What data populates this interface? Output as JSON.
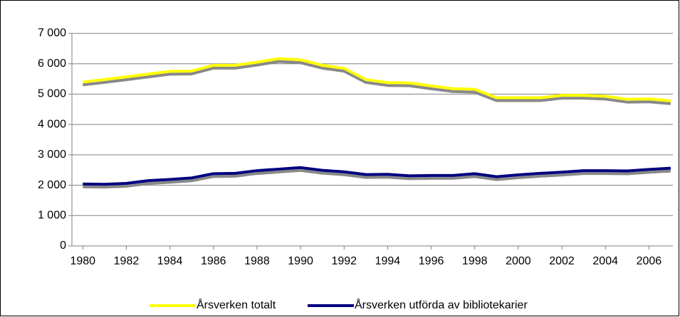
{
  "chart_data": {
    "type": "line",
    "x": [
      1980,
      1981,
      1982,
      1983,
      1984,
      1985,
      1986,
      1987,
      1988,
      1989,
      1990,
      1991,
      1992,
      1993,
      1994,
      1995,
      1996,
      1997,
      1998,
      1999,
      2000,
      2001,
      2002,
      2003,
      2004,
      2005,
      2006,
      2007
    ],
    "series": [
      {
        "name": "Årsverken totalt",
        "color": "#ffff00",
        "values": [
          5400,
          5480,
          5570,
          5660,
          5750,
          5760,
          5950,
          5950,
          6050,
          6170,
          6130,
          5950,
          5850,
          5480,
          5380,
          5370,
          5270,
          5180,
          5160,
          4880,
          4880,
          4880,
          4960,
          4960,
          4930,
          4830,
          4840,
          4780
        ]
      },
      {
        "name": "Årsverken utförda av bibliotekarier",
        "color": "#000080",
        "values": [
          2040,
          2030,
          2060,
          2150,
          2190,
          2240,
          2380,
          2390,
          2480,
          2530,
          2580,
          2490,
          2440,
          2350,
          2360,
          2310,
          2320,
          2320,
          2380,
          2280,
          2340,
          2390,
          2430,
          2480,
          2480,
          2470,
          2520,
          2560
        ]
      }
    ],
    "xlim": [
      1979.5,
      2007.1
    ],
    "xticks": [
      1980,
      1982,
      1984,
      1986,
      1988,
      1990,
      1992,
      1994,
      1996,
      1998,
      2000,
      2002,
      2004,
      2006
    ],
    "ylim": [
      0,
      7000
    ],
    "yticks": [
      0,
      {
        "value": 1000,
        "label": "1 000"
      },
      {
        "value": 2000,
        "label": "2 000"
      },
      {
        "value": 3000,
        "label": "3 000"
      },
      {
        "value": 4000,
        "label": "4 000"
      },
      {
        "value": 5000,
        "label": "5 000"
      },
      {
        "value": 6000,
        "label": "6 000"
      },
      {
        "value": 7000,
        "label": "7 000"
      }
    ],
    "grid": true,
    "legend": "bottom"
  }
}
